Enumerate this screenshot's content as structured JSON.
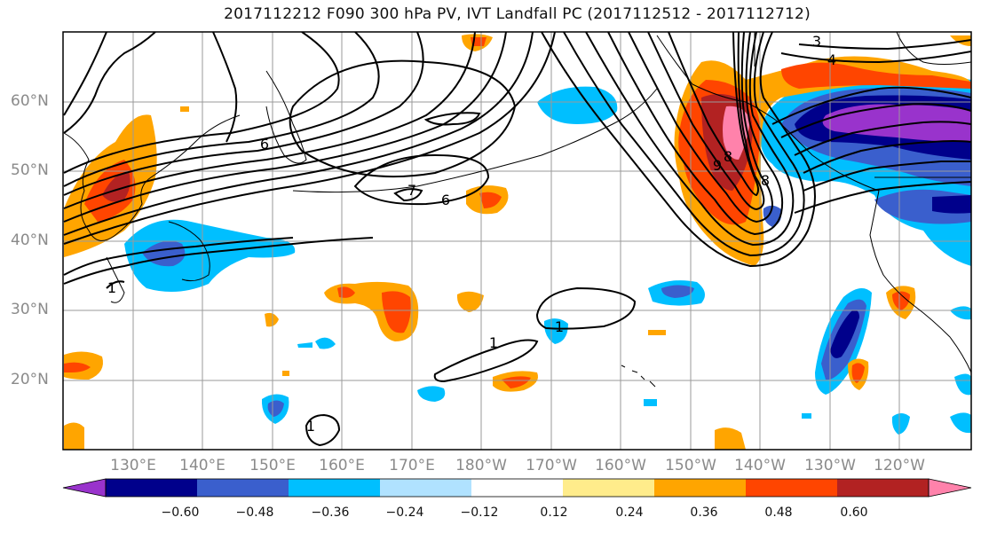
{
  "title": "2017112212 F090 300 hPa PV, IVT Landfall PC (2017112512 - 2017112712)",
  "map": {
    "lat_labels": [
      "60°N",
      "50°N",
      "40°N",
      "30°N",
      "20°N"
    ],
    "lon_labels": [
      "130°E",
      "140°E",
      "150°E",
      "160°E",
      "170°E",
      "180°W",
      "170°W",
      "160°W",
      "150°W",
      "140°W",
      "130°W",
      "120°W"
    ],
    "contour_labels": [
      "6",
      "7",
      "6",
      "3",
      "4",
      "9",
      "8",
      "8",
      "1",
      "1",
      "1",
      "1"
    ]
  },
  "colorbar": {
    "ticks": [
      "−0.60",
      "−0.48",
      "−0.36",
      "−0.24",
      "−0.12",
      "0.12",
      "0.24",
      "0.36",
      "0.48",
      "0.60"
    ],
    "colors": [
      "#9933cc",
      "#00008b",
      "#3a5fcd",
      "#00bfff",
      "#b0e2ff",
      "#ffffff",
      "#ffec8b",
      "#ffa500",
      "#ff4500",
      "#b22222",
      "#ff82ab"
    ]
  }
}
